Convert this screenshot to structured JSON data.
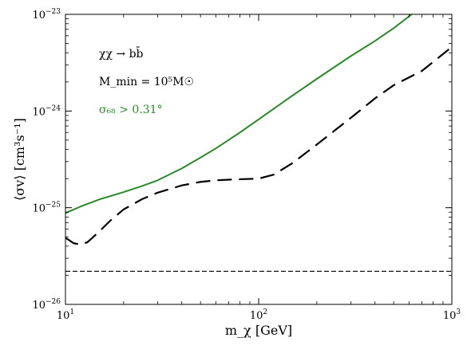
{
  "chart_data": {
    "type": "line",
    "title": "",
    "xlabel": "m_χ [GeV]",
    "ylabel": "⟨σv⟩ [cm³s⁻¹]",
    "xscale": "log",
    "yscale": "log",
    "xlim": [
      10,
      1000
    ],
    "ylim": [
      1e-26,
      1e-23
    ],
    "x_ticks": [
      {
        "value": 10,
        "base": "10",
        "exp": "1"
      },
      {
        "value": 100,
        "base": "10",
        "exp": "2"
      },
      {
        "value": 1000,
        "base": "10",
        "exp": "3"
      }
    ],
    "y_ticks": [
      {
        "value": 1e-26,
        "base": "10",
        "exp": "−26"
      },
      {
        "value": 1e-25,
        "base": "10",
        "exp": "−25"
      },
      {
        "value": 1e-24,
        "base": "10",
        "exp": "−24"
      },
      {
        "value": 1e-23,
        "base": "10",
        "exp": "−23"
      }
    ],
    "grid": false,
    "annotations": [
      {
        "text": "χχ → bb̄",
        "color": "#000000"
      },
      {
        "text": "M_min = 10⁵M☉",
        "color": "#000000"
      },
      {
        "text": "σ₆₈ > 0.31°",
        "color": "#2a8a2a"
      }
    ],
    "series": [
      {
        "color": "#2a8a2a",
        "style": "solid",
        "x": [
          10,
          12,
          15,
          20,
          25,
          30,
          40,
          50,
          60,
          80,
          100,
          150,
          200,
          300,
          400,
          500,
          620
        ],
        "y": [
          8.8e-26,
          1.03e-25,
          1.22e-25,
          1.45e-25,
          1.68e-25,
          1.92e-25,
          2.55e-25,
          3.3e-25,
          4.1e-25,
          6e-25,
          8.2e-25,
          1.45e-24,
          2.15e-24,
          3.7e-24,
          5.3e-24,
          7.2e-24,
          1e-23
        ]
      },
      {
        "color": "#000000",
        "style": "long-dash",
        "x": [
          10,
          11,
          12,
          13,
          15,
          17,
          20,
          25,
          30,
          40,
          50,
          60,
          70,
          80,
          100,
          120,
          150,
          200,
          300,
          400,
          500,
          700,
          1000
        ],
        "y": [
          4.9e-26,
          4.3e-26,
          4.15e-26,
          4.4e-26,
          5.7e-26,
          7.3e-26,
          9.6e-26,
          1.23e-25,
          1.43e-25,
          1.7e-25,
          1.85e-25,
          1.92e-25,
          1.95e-25,
          1.97e-25,
          2e-25,
          2.2e-25,
          2.9e-25,
          4.5e-25,
          8.5e-25,
          1.35e-24,
          1.85e-24,
          2.6e-24,
          4.6e-24
        ]
      },
      {
        "color": "#000000",
        "style": "short-dash",
        "x": [
          10,
          1000
        ],
        "y": [
          2.2e-26,
          2.2e-26
        ]
      }
    ]
  }
}
